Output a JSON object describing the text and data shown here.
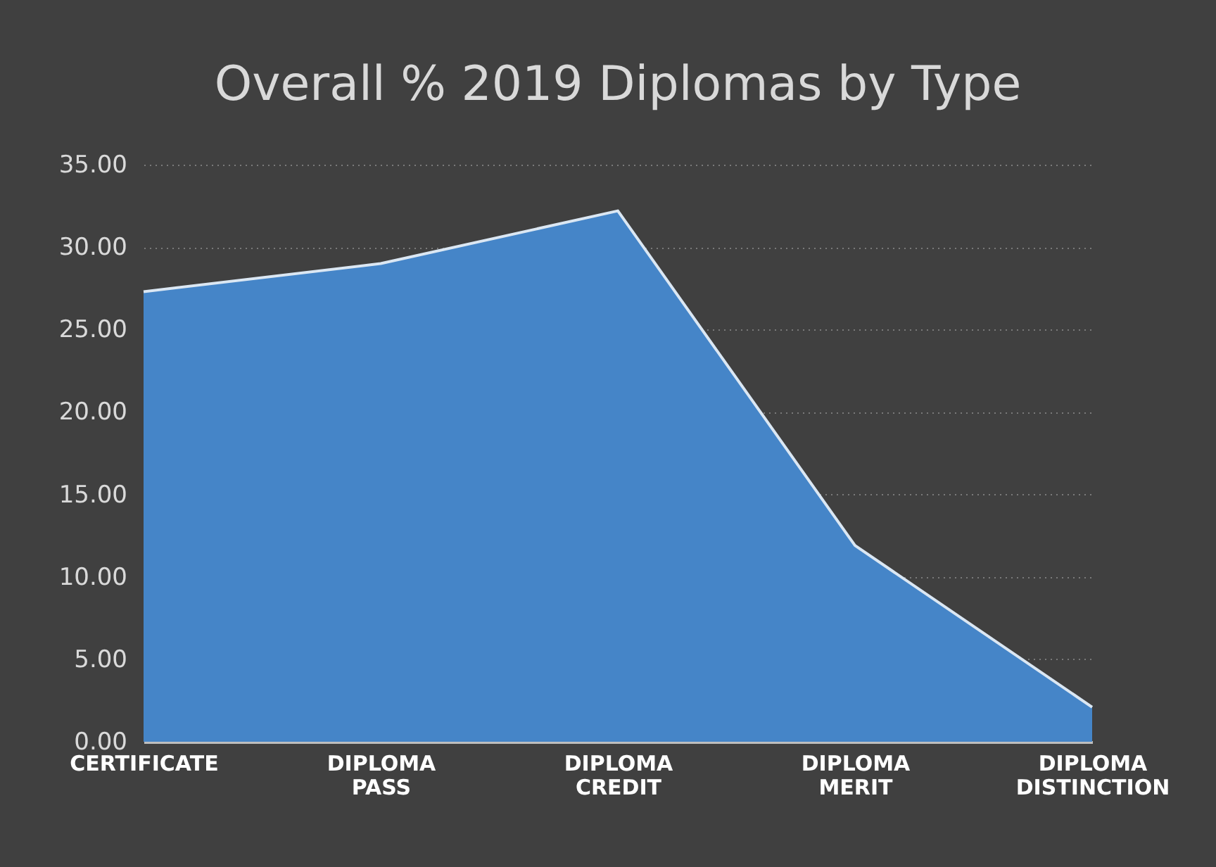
{
  "chart_data": {
    "type": "area",
    "title": "Overall % 2019 Diplomas by Type",
    "categories": [
      "CERTIFICATE",
      "DIPLOMA PASS",
      "DIPLOMA CREDIT",
      "DIPLOMA MERIT",
      "DIPLOMA DISTINCTION"
    ],
    "series": [
      {
        "color": "#4585c8",
        "values": [
          27.3,
          29.0,
          32.2,
          11.9,
          2.1
        ]
      }
    ],
    "ylim": [
      0,
      35
    ],
    "yticks": [
      {
        "value": 0,
        "label": "0.00"
      },
      {
        "value": 5,
        "label": "5.00"
      },
      {
        "value": 10,
        "label": "10.00"
      },
      {
        "value": 15,
        "label": "15.00"
      },
      {
        "value": 20,
        "label": "20.00"
      },
      {
        "value": 25,
        "label": "25.00"
      },
      {
        "value": 30,
        "label": "30.00"
      },
      {
        "value": 35,
        "label": "35.00"
      }
    ],
    "grid": "y"
  }
}
